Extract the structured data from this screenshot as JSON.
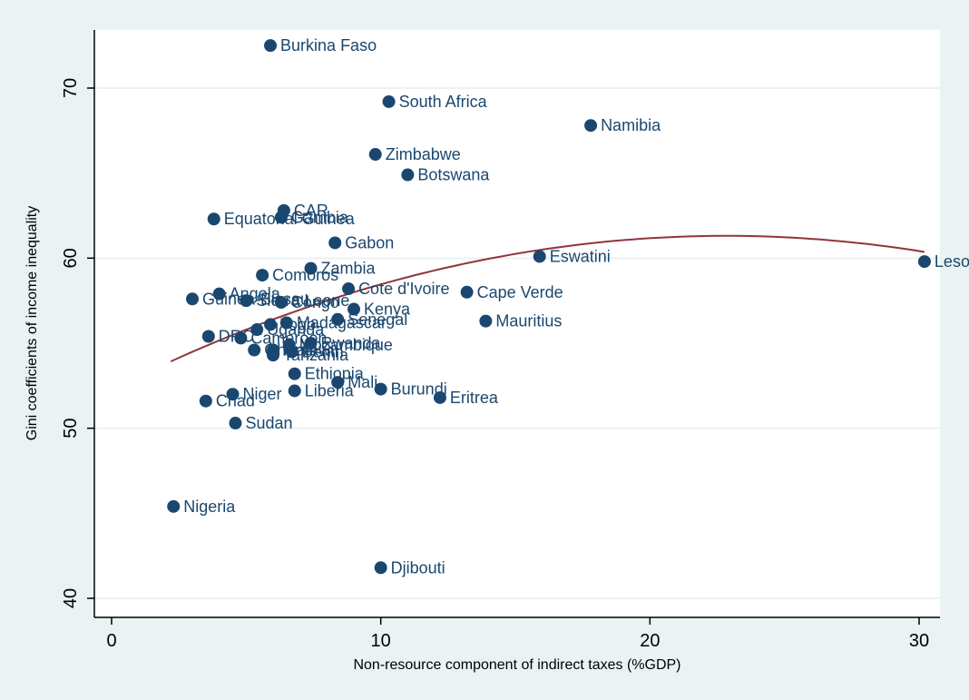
{
  "chart_data": {
    "type": "scatter",
    "title": "",
    "xlabel": "Non-resource component of indirect taxes (%GDP)",
    "ylabel": "Gini coefficients of income inequality",
    "xlim": [
      -1,
      31
    ],
    "ylim": [
      38.8,
      73.5
    ],
    "xticks": [
      0,
      10,
      20,
      30
    ],
    "yticks": [
      40,
      50,
      60,
      70
    ],
    "grid": true,
    "legend": "none",
    "colors": {
      "background": "#eaf2f3",
      "plot": "#ffffff",
      "marker": "#1a476f",
      "fit": "#90353b",
      "grid": "#eaf2f3"
    },
    "points": [
      {
        "x": 5.9,
        "y": 72.5,
        "label": "Burkina Faso"
      },
      {
        "x": 10.3,
        "y": 69.2,
        "label": "South Africa"
      },
      {
        "x": 17.8,
        "y": 67.8,
        "label": "Namibia"
      },
      {
        "x": 9.8,
        "y": 66.1,
        "label": "Zimbabwe"
      },
      {
        "x": 11.0,
        "y": 64.9,
        "label": "Botswana"
      },
      {
        "x": 6.4,
        "y": 62.8,
        "label": "CAR"
      },
      {
        "x": 3.8,
        "y": 62.3,
        "label": "Equatorial Guinea"
      },
      {
        "x": 6.3,
        "y": 62.4,
        "label": "Gambia"
      },
      {
        "x": 8.3,
        "y": 60.9,
        "label": "Gabon"
      },
      {
        "x": 15.9,
        "y": 60.1,
        "label": "Eswatini"
      },
      {
        "x": 30.2,
        "y": 59.8,
        "label": "Lesotho"
      },
      {
        "x": 7.4,
        "y": 59.4,
        "label": "Zambia"
      },
      {
        "x": 5.6,
        "y": 59.0,
        "label": "Comoros"
      },
      {
        "x": 8.8,
        "y": 58.2,
        "label": "Cote d'Ivoire"
      },
      {
        "x": 13.2,
        "y": 58.0,
        "label": "Cape Verde"
      },
      {
        "x": 4.0,
        "y": 57.9,
        "label": "Angola"
      },
      {
        "x": 3.0,
        "y": 57.6,
        "label": "Guinea-Bissau"
      },
      {
        "x": 5.0,
        "y": 57.5,
        "label": "Sierra Leone"
      },
      {
        "x": 6.3,
        "y": 57.4,
        "label": "Congo"
      },
      {
        "x": 9.0,
        "y": 57.0,
        "label": "Kenya"
      },
      {
        "x": 8.4,
        "y": 56.4,
        "label": "Senegal"
      },
      {
        "x": 13.9,
        "y": 56.3,
        "label": "Mauritius"
      },
      {
        "x": 6.5,
        "y": 56.2,
        "label": "Madagascar"
      },
      {
        "x": 5.9,
        "y": 56.1,
        "label": "Togo"
      },
      {
        "x": 5.4,
        "y": 55.8,
        "label": "Uganda"
      },
      {
        "x": 3.6,
        "y": 55.4,
        "label": "DRC"
      },
      {
        "x": 4.8,
        "y": 55.3,
        "label": "Cameroon"
      },
      {
        "x": 7.4,
        "y": 55.0,
        "label": "Rwanda"
      },
      {
        "x": 6.6,
        "y": 54.9,
        "label": "Mozambique"
      },
      {
        "x": 5.3,
        "y": 54.6,
        "label": "Ghana"
      },
      {
        "x": 6.0,
        "y": 54.6,
        "label": "Malawi"
      },
      {
        "x": 6.7,
        "y": 54.5,
        "label": "Benin"
      },
      {
        "x": 6.0,
        "y": 54.3,
        "label": "Tanzania"
      },
      {
        "x": 6.8,
        "y": 53.2,
        "label": "Ethiopia"
      },
      {
        "x": 8.4,
        "y": 52.7,
        "label": "Mali"
      },
      {
        "x": 10.0,
        "y": 52.3,
        "label": "Burundi"
      },
      {
        "x": 6.8,
        "y": 52.2,
        "label": "Liberia"
      },
      {
        "x": 12.2,
        "y": 51.8,
        "label": "Eritrea"
      },
      {
        "x": 4.5,
        "y": 52.0,
        "label": "Niger"
      },
      {
        "x": 3.5,
        "y": 51.6,
        "label": "Chad"
      },
      {
        "x": 4.6,
        "y": 50.3,
        "label": "Sudan"
      },
      {
        "x": 2.3,
        "y": 45.4,
        "label": "Nigeria"
      },
      {
        "x": 10.0,
        "y": 41.8,
        "label": "Djibouti"
      }
    ],
    "fit": {
      "type": "quadratic",
      "x": [
        2.2,
        5,
        10,
        15,
        20,
        25,
        30.2
      ],
      "y": [
        53.9,
        55.8,
        58.5,
        60.3,
        61.1,
        61.2,
        60.4
      ]
    }
  }
}
